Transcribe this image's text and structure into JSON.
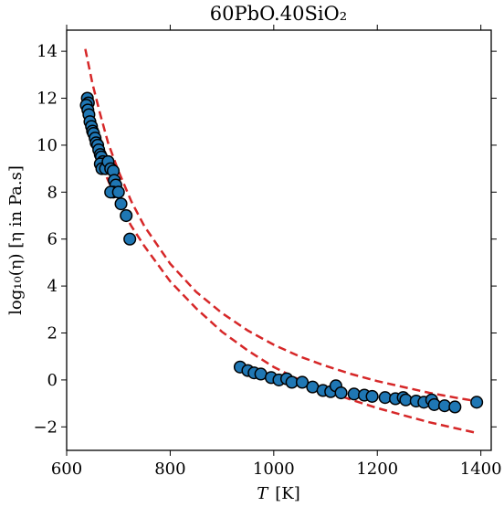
{
  "chart_data": {
    "type": "scatter",
    "title": "60PbO.40SiO₂",
    "xlabel_var": "T",
    "xlabel_unit": "[K]",
    "ylabel": "log₁₀(η)  [η in Pa.s]",
    "xlim": [
      600,
      1420
    ],
    "ylim": [
      -3,
      14.9
    ],
    "xticks": [
      600,
      800,
      1000,
      1200,
      1400
    ],
    "xtick_labels": [
      "600",
      "800",
      "1000",
      "1200",
      "1400"
    ],
    "yticks": [
      -2,
      0,
      2,
      4,
      6,
      8,
      10,
      12,
      14
    ],
    "ytick_labels": [
      "−2",
      "0",
      "2",
      "4",
      "6",
      "8",
      "10",
      "12",
      "14"
    ],
    "grid": false,
    "marker_color": "#1f77b4",
    "fit_color": "#d62728",
    "series": [
      {
        "kind": "points",
        "points": [
          [
            640,
            12.0
          ],
          [
            642,
            11.8
          ],
          [
            638,
            11.7
          ],
          [
            641,
            11.5
          ],
          [
            643,
            11.3
          ],
          [
            645,
            11.0
          ],
          [
            648,
            10.8
          ],
          [
            650,
            10.6
          ],
          [
            652,
            10.5
          ],
          [
            655,
            10.3
          ],
          [
            657,
            10.1
          ],
          [
            660,
            10.0
          ],
          [
            662,
            9.8
          ],
          [
            665,
            9.6
          ],
          [
            667,
            9.5
          ],
          [
            670,
            9.3
          ],
          [
            672,
            9.2
          ],
          [
            665,
            9.2
          ],
          [
            668,
            9.0
          ],
          [
            675,
            9.0
          ],
          [
            680,
            9.3
          ],
          [
            685,
            9.0
          ],
          [
            690,
            8.9
          ],
          [
            692,
            8.5
          ],
          [
            695,
            8.3
          ],
          [
            690,
            8.0
          ],
          [
            685,
            8.0
          ],
          [
            700,
            8.0
          ],
          [
            705,
            7.5
          ],
          [
            715,
            7.0
          ],
          [
            722,
            6.0
          ],
          [
            935,
            0.55
          ],
          [
            950,
            0.4
          ],
          [
            962,
            0.3
          ],
          [
            975,
            0.25
          ],
          [
            995,
            0.1
          ],
          [
            1010,
            0.0
          ],
          [
            1025,
            0.05
          ],
          [
            1035,
            -0.1
          ],
          [
            1055,
            -0.1
          ],
          [
            1075,
            -0.3
          ],
          [
            1095,
            -0.45
          ],
          [
            1110,
            -0.5
          ],
          [
            1120,
            -0.25
          ],
          [
            1130,
            -0.55
          ],
          [
            1155,
            -0.6
          ],
          [
            1175,
            -0.65
          ],
          [
            1190,
            -0.7
          ],
          [
            1215,
            -0.75
          ],
          [
            1235,
            -0.8
          ],
          [
            1250,
            -0.75
          ],
          [
            1255,
            -0.85
          ],
          [
            1275,
            -0.9
          ],
          [
            1290,
            -0.95
          ],
          [
            1305,
            -0.85
          ],
          [
            1310,
            -1.05
          ],
          [
            1330,
            -1.1
          ],
          [
            1350,
            -1.15
          ],
          [
            1392,
            -0.95
          ]
        ]
      },
      {
        "kind": "fit-upper",
        "points": [
          [
            636,
            14.1
          ],
          [
            650,
            12.6
          ],
          [
            665,
            11.3
          ],
          [
            680,
            10.1
          ],
          [
            700,
            8.9
          ],
          [
            725,
            7.6
          ],
          [
            750,
            6.55
          ],
          [
            800,
            4.95
          ],
          [
            850,
            3.75
          ],
          [
            900,
            2.85
          ],
          [
            950,
            2.1
          ],
          [
            1000,
            1.5
          ],
          [
            1050,
            1.0
          ],
          [
            1100,
            0.6
          ],
          [
            1150,
            0.25
          ],
          [
            1200,
            -0.05
          ],
          [
            1250,
            -0.3
          ],
          [
            1300,
            -0.55
          ],
          [
            1350,
            -0.75
          ],
          [
            1390,
            -0.9
          ]
        ]
      },
      {
        "kind": "fit-lower",
        "points": [
          [
            636,
            11.2
          ],
          [
            650,
            10.2
          ],
          [
            665,
            9.3
          ],
          [
            680,
            8.5
          ],
          [
            700,
            7.55
          ],
          [
            725,
            6.55
          ],
          [
            750,
            5.7
          ],
          [
            800,
            4.2
          ],
          [
            850,
            3.05
          ],
          [
            900,
            2.05
          ],
          [
            950,
            1.25
          ],
          [
            1000,
            0.55
          ],
          [
            1050,
            0.0
          ],
          [
            1100,
            -0.45
          ],
          [
            1150,
            -0.85
          ],
          [
            1200,
            -1.2
          ],
          [
            1250,
            -1.5
          ],
          [
            1300,
            -1.8
          ],
          [
            1350,
            -2.05
          ],
          [
            1390,
            -2.25
          ]
        ]
      }
    ]
  }
}
